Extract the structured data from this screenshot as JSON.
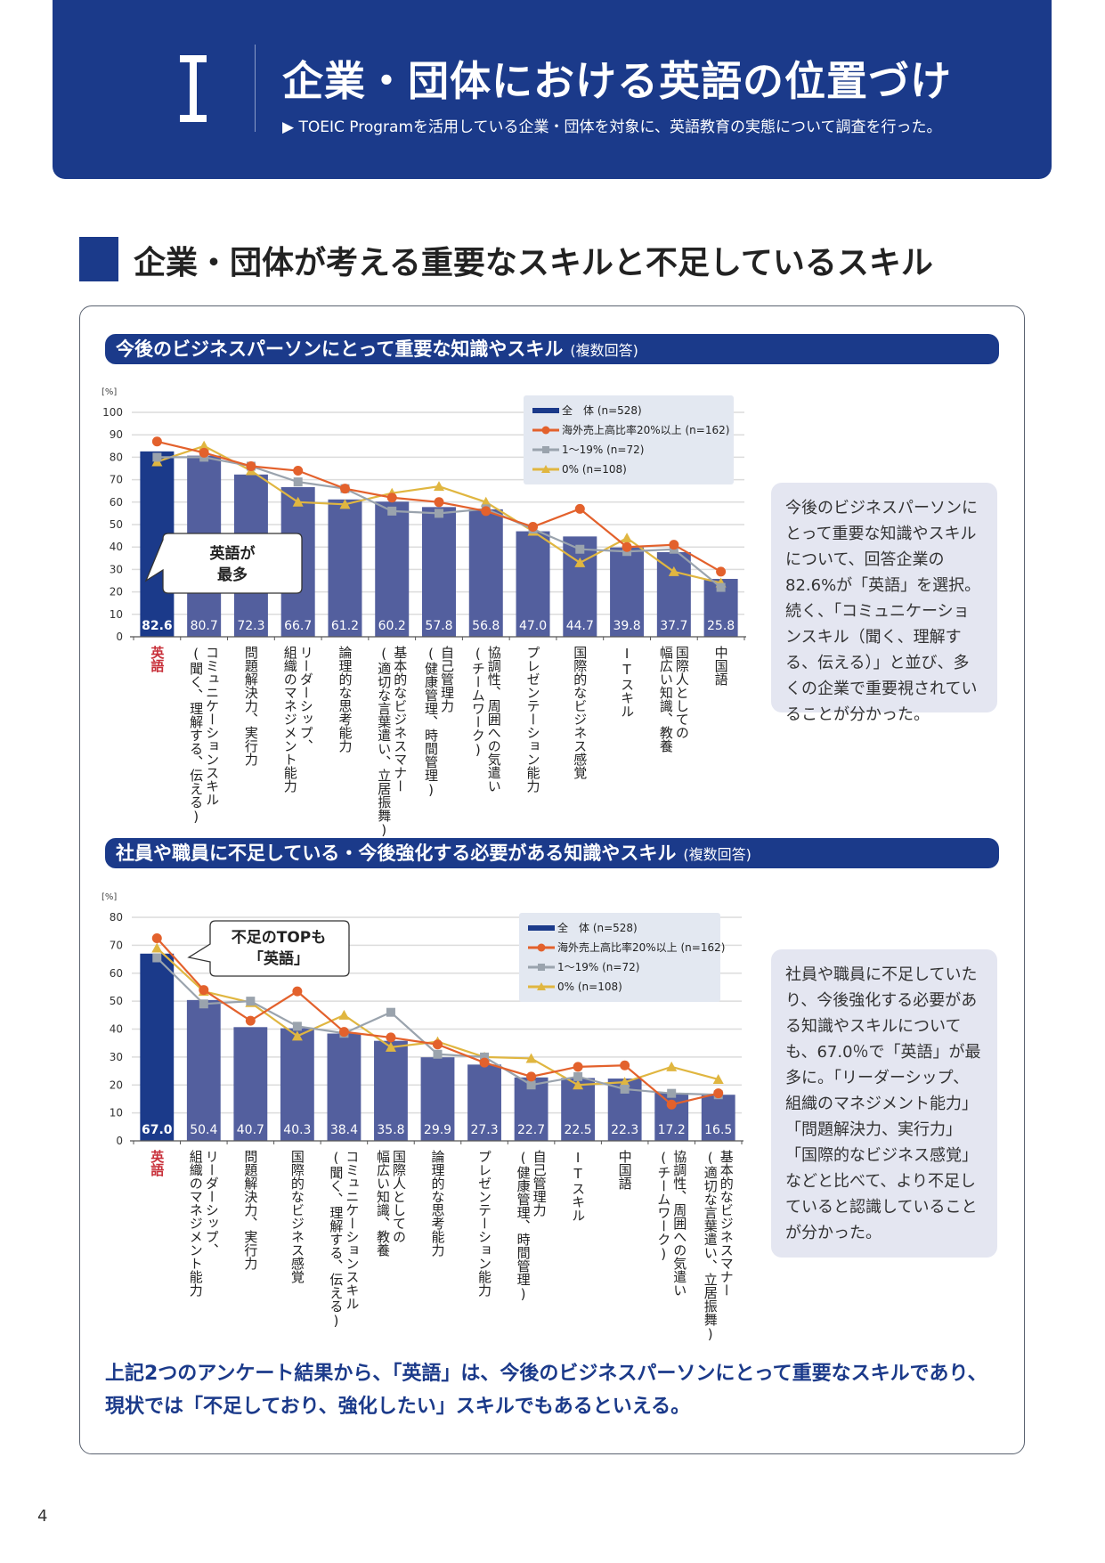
{
  "header": {
    "chapter_numeral": "I",
    "title": "企業・団体における英語の位置づけ",
    "subtitle": "▶ TOEIC Programを活用している企業・団体を対象に、英語教育の実態について調査を行った。"
  },
  "section": {
    "title": "企業・団体が考える重要なスキルと不足しているスキル"
  },
  "legend": [
    {
      "label": "全　体 (n=528)",
      "color": "#1b3a8a",
      "marker": "bar"
    },
    {
      "label": "海外売上高比率20%以上 (n=162)",
      "color": "#e3612c",
      "marker": "circle"
    },
    {
      "label": "1～19% (n=72)",
      "color": "#9aa3ad",
      "marker": "square"
    },
    {
      "label": "0% (n=108)",
      "color": "#e0b640",
      "marker": "triangle"
    }
  ],
  "colors": {
    "primary": "#1b3a8a",
    "bar": "#535f9e",
    "highlight_bar": "#1b3a8a",
    "highlight_label": "#c8303a",
    "note_bg": "#e4e6f1"
  },
  "chart_data": [
    {
      "type": "bar",
      "title": "今後のビジネスパーソンにとって重要な知識やスキル",
      "title_note": "(複数回答)",
      "ylabel": "[%]",
      "ylim": [
        0,
        100
      ],
      "yticks": [
        0,
        10,
        20,
        30,
        40,
        50,
        60,
        70,
        80,
        90,
        100
      ],
      "grid": true,
      "legend_position": "top-right",
      "callout": "英語が\n最多",
      "categories": [
        "英語",
        "コミュニケーションスキル\n(聞く、理解する、伝える)",
        "問題解決力、実行力",
        "リーダーシップ、\n組織のマネジメント能力",
        "論理的な思考能力",
        "基本的なビジネスマナー\n(適切な言葉遣い、立居振舞)",
        "自己管理力\n(健康管理、時間管理)",
        "協調性、周囲への気遣い\n(チームワーク)",
        "プレゼンテーション能力",
        "国際的なビジネス感覚",
        "ITスキル",
        "国際人としての\n幅広い知識、教養",
        "中国語"
      ],
      "series": [
        {
          "name": "全　体 (n=528)",
          "kind": "bar",
          "values": [
            82.6,
            80.7,
            72.3,
            66.7,
            61.2,
            60.2,
            57.8,
            56.8,
            47.0,
            44.7,
            39.8,
            37.7,
            25.8
          ]
        },
        {
          "name": "海外売上高比率20%以上 (n=162)",
          "kind": "line",
          "values": [
            87,
            82,
            76,
            74,
            66,
            62,
            60,
            56,
            49,
            57,
            40,
            41,
            29
          ]
        },
        {
          "name": "1～19% (n=72)",
          "kind": "line",
          "values": [
            80,
            80,
            76,
            69,
            66,
            56,
            55,
            57,
            48,
            39,
            38,
            39,
            22
          ]
        },
        {
          "name": "0% (n=108)",
          "kind": "line",
          "values": [
            78,
            85,
            74,
            60,
            59,
            64,
            67,
            60,
            47,
            33,
            44,
            29,
            24
          ]
        }
      ],
      "data_labels": [
        "82.6",
        "80.7",
        "72.3",
        "66.7",
        "61.2",
        "60.2",
        "57.8",
        "56.8",
        "47.0",
        "44.7",
        "39.8",
        "37.7",
        "25.8"
      ],
      "note": "今後のビジネスパーソンにとって重要な知識やスキルについて、回答企業の82.6%が「英語」を選択。続く、「コミュニケーションスキル（聞く、理解する、伝える）」と並び、多くの企業で重要視されていることが分かった。"
    },
    {
      "type": "bar",
      "title": "社員や職員に不足している・今後強化する必要がある知識やスキル",
      "title_note": "(複数回答)",
      "ylabel": "[%]",
      "ylim": [
        0,
        80
      ],
      "yticks": [
        0,
        10,
        20,
        30,
        40,
        50,
        60,
        70,
        80
      ],
      "grid": true,
      "legend_position": "top-right",
      "callout": "不足のTOPも\n「英語」",
      "categories": [
        "英語",
        "リーダーシップ、\n組織のマネジメント能力",
        "問題解決力、実行力",
        "国際的なビジネス感覚",
        "コミュニケーションスキル\n(聞く、理解する、伝える)",
        "国際人としての\n幅広い知識、教養",
        "論理的な思考能力",
        "プレゼンテーション能力",
        "自己管理力\n(健康管理、時間管理)",
        "ITスキル",
        "中国語",
        "協調性、周囲への気遣い\n(チームワーク)",
        "基本的なビジネスマナー\n(適切な言葉遣い、立居振舞)"
      ],
      "series": [
        {
          "name": "全　体 (n=528)",
          "kind": "bar",
          "values": [
            67.0,
            50.4,
            40.7,
            40.3,
            38.4,
            35.8,
            29.9,
            27.3,
            22.7,
            22.5,
            22.3,
            17.2,
            16.5
          ]
        },
        {
          "name": "海外売上高比率20%以上 (n=162)",
          "kind": "line",
          "values": [
            72.5,
            54,
            43,
            53.5,
            39,
            37,
            34.5,
            28,
            23,
            26.5,
            27,
            13,
            17
          ]
        },
        {
          "name": "1～19% (n=72)",
          "kind": "line",
          "values": [
            65.5,
            49,
            50,
            41,
            38.5,
            46,
            31,
            30,
            20,
            23,
            18.5,
            17,
            16.5
          ]
        },
        {
          "name": "0% (n=108)",
          "kind": "line",
          "values": [
            69,
            53.5,
            49.5,
            37.5,
            45,
            33.5,
            35.5,
            30,
            29.5,
            20,
            21,
            26.5,
            22
          ]
        }
      ],
      "data_labels": [
        "67.0",
        "50.4",
        "40.7",
        "40.3",
        "38.4",
        "35.8",
        "29.9",
        "27.3",
        "22.7",
        "22.5",
        "22.3",
        "17.2",
        "16.5"
      ],
      "note": "社員や職員に不足していたり、今後強化する必要がある知識やスキルについても、67.0％で「英語」が最多に。「リーダーシップ、組織のマネジメント能力」「問題解決力、実行力」「国際的なビジネス感覚」などと比べて、より不足していると認識していることが分かった。"
    }
  ],
  "conclusion": {
    "line1": "上記2つのアンケート結果から、「英語」は、今後のビジネスパーソンにとって重要なスキルであり、",
    "line2": "現状では「不足しており、強化したい」スキルでもあるといえる。"
  },
  "page_number": "4"
}
